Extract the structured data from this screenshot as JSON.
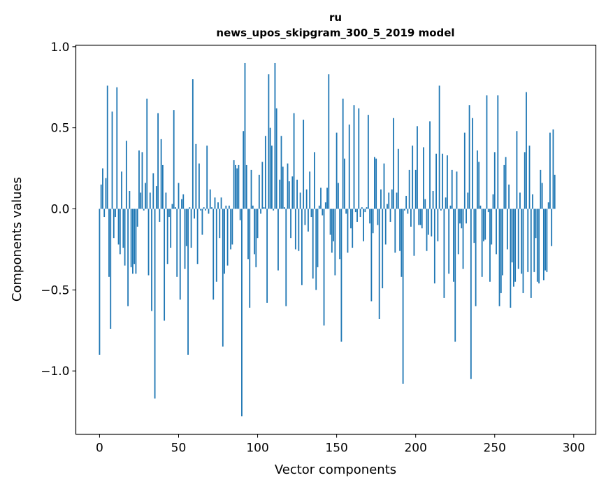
{
  "chart_data": {
    "type": "bar",
    "title_line1": "ru",
    "title_line2": "news_upos_skipgram_300_5_2019 model",
    "xlabel": "Vector components",
    "ylabel": "Components values",
    "xlim": [
      -15,
      314
    ],
    "ylim": [
      -1.39,
      1.01
    ],
    "xticks": [
      0,
      50,
      100,
      150,
      200,
      250,
      300
    ],
    "yticks": [
      1.0,
      0.5,
      0.0,
      -0.5,
      -1.0
    ],
    "ytick_labels": [
      "1.0",
      "0.5",
      "0.0",
      "−0.5",
      "−1.0"
    ],
    "bar_color": "#1f77b4",
    "grid": false,
    "values": [
      -0.9,
      0.15,
      0.25,
      -0.05,
      0.19,
      0.76,
      -0.42,
      -0.74,
      0.6,
      -0.18,
      -0.05,
      0.75,
      -0.22,
      -0.28,
      0.23,
      -0.24,
      -0.35,
      0.42,
      -0.6,
      0.11,
      -0.36,
      -0.4,
      -0.34,
      -0.4,
      -0.11,
      0.36,
      0.1,
      0.35,
      -0.01,
      0.16,
      0.68,
      -0.41,
      0.1,
      -0.63,
      0.22,
      -1.17,
      0.14,
      0.59,
      -0.08,
      0.43,
      0.27,
      -0.69,
      0.1,
      -0.34,
      -0.05,
      -0.24,
      0.03,
      0.61,
      0.01,
      -0.42,
      0.16,
      -0.56,
      0.06,
      0.09,
      -0.37,
      -0.23,
      -0.9,
      0.01,
      -0.24,
      0.8,
      -0.06,
      0.4,
      -0.34,
      0.28,
      -0.01,
      -0.16,
      0.01,
      -0.01,
      0.39,
      -0.03,
      0.12,
      0.01,
      -0.56,
      0.07,
      -0.45,
      0.04,
      -0.18,
      0.07,
      -0.85,
      -0.4,
      0.02,
      -0.35,
      0.02,
      -0.25,
      -0.22,
      0.3,
      0.27,
      0.25,
      0.27,
      -0.07,
      -1.28,
      0.48,
      0.9,
      0.27,
      -0.31,
      -0.61,
      0.24,
      0.02,
      -0.28,
      -0.36,
      -0.18,
      0.21,
      -0.03,
      0.29,
      0.01,
      0.45,
      -0.58,
      0.83,
      0.5,
      0.39,
      -0.01,
      0.9,
      0.62,
      -0.38,
      0.18,
      0.45,
      0.26,
      0.01,
      -0.6,
      0.28,
      0.17,
      -0.18,
      0.2,
      0.59,
      -0.25,
      0.18,
      -0.26,
      0.1,
      -0.47,
      0.55,
      -0.1,
      0.12,
      -0.14,
      0.23,
      -0.05,
      -0.43,
      0.35,
      -0.5,
      -0.36,
      0.02,
      0.13,
      -0.04,
      -0.72,
      0.04,
      0.13,
      0.83,
      -0.16,
      -0.27,
      -0.2,
      -0.41,
      0.47,
      0.16,
      -0.31,
      -0.82,
      0.68,
      0.31,
      -0.03,
      -0.27,
      0.52,
      -0.12,
      -0.24,
      0.64,
      -0.02,
      -0.08,
      0.62,
      -0.05,
      0.01,
      -0.2,
      -0.02,
      0.01,
      0.58,
      -0.09,
      -0.57,
      -0.15,
      0.32,
      0.31,
      -0.1,
      -0.68,
      0.12,
      -0.49,
      0.28,
      -0.22,
      0.03,
      0.1,
      -0.08,
      0.12,
      0.56,
      -0.27,
      0.1,
      0.37,
      -0.26,
      -0.42,
      -1.08,
      -0.01,
      0.08,
      -0.03,
      0.24,
      -0.11,
      0.39,
      -0.29,
      0.24,
      0.51,
      -0.1,
      -0.1,
      -0.12,
      0.38,
      0.06,
      -0.26,
      -0.16,
      0.54,
      -0.17,
      0.11,
      -0.46,
      0.34,
      -0.2,
      0.76,
      -0.01,
      0.34,
      -0.55,
      0.07,
      0.33,
      -0.4,
      0.02,
      0.24,
      -0.45,
      -0.82,
      0.23,
      -0.28,
      -0.09,
      -0.12,
      -0.37,
      0.47,
      -0.09,
      0.1,
      0.64,
      -1.05,
      0.56,
      -0.21,
      -0.6,
      0.36,
      0.29,
      0.02,
      -0.42,
      -0.2,
      -0.19,
      0.7,
      -0.02,
      -0.45,
      -0.22,
      0.09,
      0.35,
      -0.28,
      0.7,
      -0.6,
      -0.52,
      -0.41,
      0.27,
      0.32,
      -0.25,
      0.15,
      -0.61,
      -0.33,
      -0.48,
      -0.45,
      0.48,
      -0.37,
      0.1,
      -0.4,
      -0.52,
      0.35,
      0.72,
      -0.39,
      0.39,
      -0.55,
      0.09,
      -0.39,
      -0.18,
      -0.45,
      -0.46,
      0.24,
      0.16,
      -0.44,
      -0.38,
      -0.39,
      0.04,
      0.47,
      -0.23,
      0.49,
      0.21
    ]
  }
}
